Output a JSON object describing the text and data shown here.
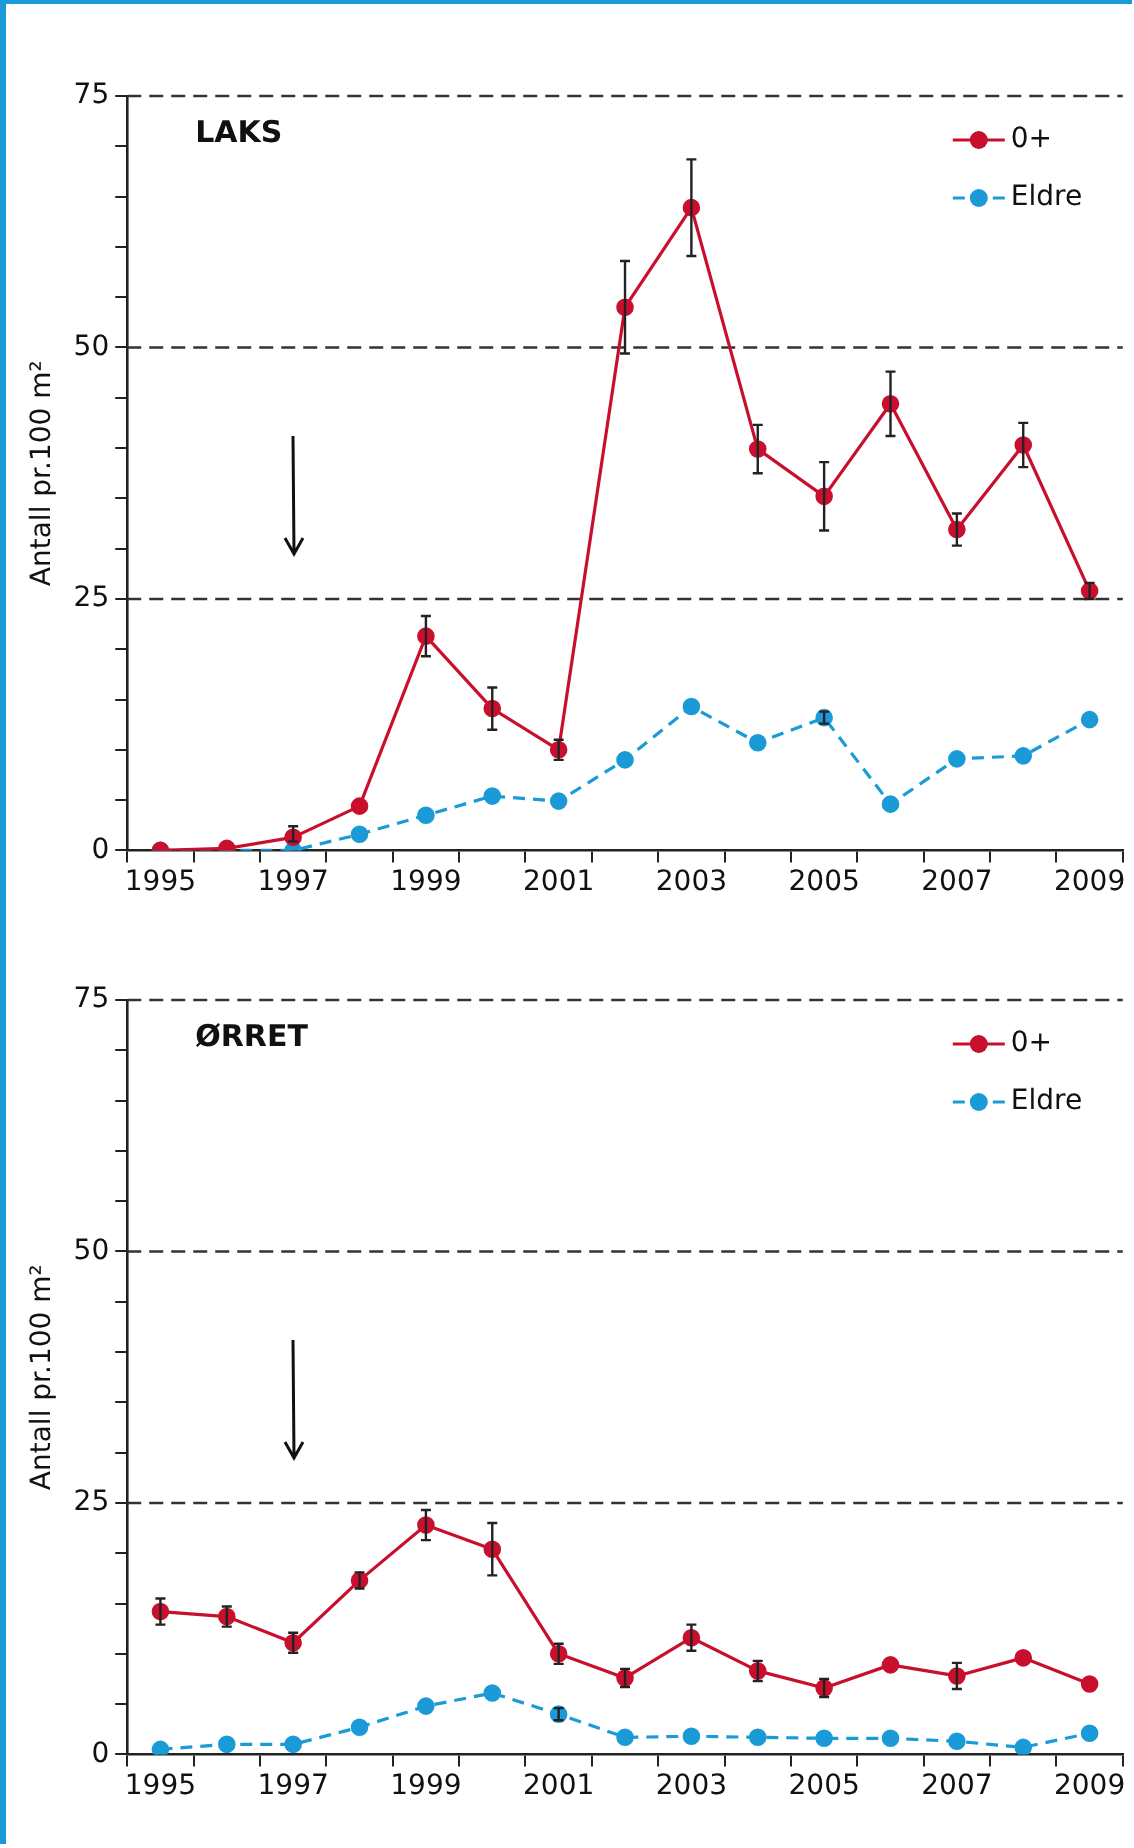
{
  "chart_data": [
    {
      "type": "line",
      "title": "LAKS",
      "ylabel": "Antall pr.100 m²",
      "categories": [
        "1995",
        null,
        "1997",
        null,
        "1999",
        null,
        "2001",
        null,
        "2003",
        null,
        "2005",
        null,
        "2007",
        null,
        "2009"
      ],
      "ylim": [
        0,
        75
      ],
      "yticks": [
        0,
        {
          "value": 5,
          "label": null
        },
        {
          "value": 10,
          "label": null
        },
        {
          "value": 15,
          "label": null
        },
        {
          "value": 20,
          "label": null
        },
        25,
        {
          "value": 30,
          "label": null
        },
        {
          "value": 35,
          "label": null
        },
        {
          "value": 40,
          "label": null
        },
        {
          "value": 45,
          "label": null
        },
        50,
        {
          "value": 55,
          "label": null
        },
        {
          "value": 60,
          "label": null
        },
        {
          "value": 65,
          "label": null
        },
        {
          "value": 70,
          "label": null
        },
        75
      ],
      "grid": "y",
      "legend": "top right",
      "marker": "circle",
      "series": [
        {
          "name": "0+",
          "color": "#c8102e",
          "line_style": "solid",
          "values": [
            0,
            0.2,
            1.3,
            4.4,
            21.3,
            14.1,
            10.0,
            54.0,
            63.9,
            39.9,
            35.2,
            44.4,
            31.9,
            40.3,
            25.8
          ],
          "errors": [
            null,
            null,
            [
              0.9,
              2.4
            ],
            null,
            2,
            2.1,
            1,
            4.6,
            4.8,
            2.4,
            3.4,
            3.2,
            1.6,
            2.2,
            0.8
          ]
        },
        {
          "name": "Eldre",
          "color": "#1a9ad6",
          "line_style": "dashed",
          "values": [
            0,
            0,
            0,
            1.6,
            3.5,
            5.4,
            4.9,
            9.0,
            14.3,
            10.7,
            13.2,
            4.6,
            9.1,
            9.4,
            13.0
          ],
          "errors": [
            null,
            null,
            null,
            null,
            null,
            null,
            null,
            null,
            null,
            null,
            0.6,
            null,
            null,
            null,
            null
          ]
        }
      ]
    },
    {
      "type": "line",
      "title": "ØRRET",
      "ylabel": "Antall pr.100 m²",
      "categories": [
        "1995",
        null,
        "1997",
        null,
        "1999",
        null,
        "2001",
        null,
        "2003",
        null,
        "2005",
        null,
        "2007",
        null,
        "2009"
      ],
      "ylim": [
        0,
        75
      ],
      "yticks": [
        0,
        {
          "value": 5,
          "label": null
        },
        {
          "value": 10,
          "label": null
        },
        {
          "value": 15,
          "label": null
        },
        {
          "value": 20,
          "label": null
        },
        25,
        {
          "value": 30,
          "label": null
        },
        {
          "value": 35,
          "label": null
        },
        {
          "value": 40,
          "label": null
        },
        {
          "value": 45,
          "label": null
        },
        50,
        {
          "value": 55,
          "label": null
        },
        {
          "value": 60,
          "label": null
        },
        {
          "value": 65,
          "label": null
        },
        {
          "value": 70,
          "label": null
        },
        75
      ],
      "grid": "y",
      "legend": "top right",
      "marker": "circle",
      "series": [
        {
          "name": "0+",
          "color": "#c8102e",
          "line_style": "solid",
          "values": [
            14.2,
            13.7,
            11.1,
            17.3,
            22.8,
            20.4,
            10.0,
            7.6,
            11.6,
            8.3,
            6.6,
            8.9,
            7.8,
            9.6,
            7.0
          ],
          "errors": [
            1.3,
            1.0,
            1.0,
            0.8,
            1.5,
            2.6,
            1.0,
            0.9,
            1.3,
            1.0,
            0.9,
            null,
            1.3,
            null,
            null
          ]
        },
        {
          "name": "Eldre",
          "color": "#1a9ad6",
          "line_style": "dashed",
          "values": [
            0.5,
            1.0,
            1.0,
            2.7,
            4.8,
            6.1,
            4.0,
            1.7,
            1.8,
            1.7,
            1.6,
            1.6,
            1.3,
            0.7,
            2.1
          ],
          "errors": [
            null,
            null,
            null,
            null,
            null,
            null,
            0.6,
            null,
            null,
            null,
            null,
            null,
            null,
            null,
            null
          ]
        }
      ]
    }
  ]
}
